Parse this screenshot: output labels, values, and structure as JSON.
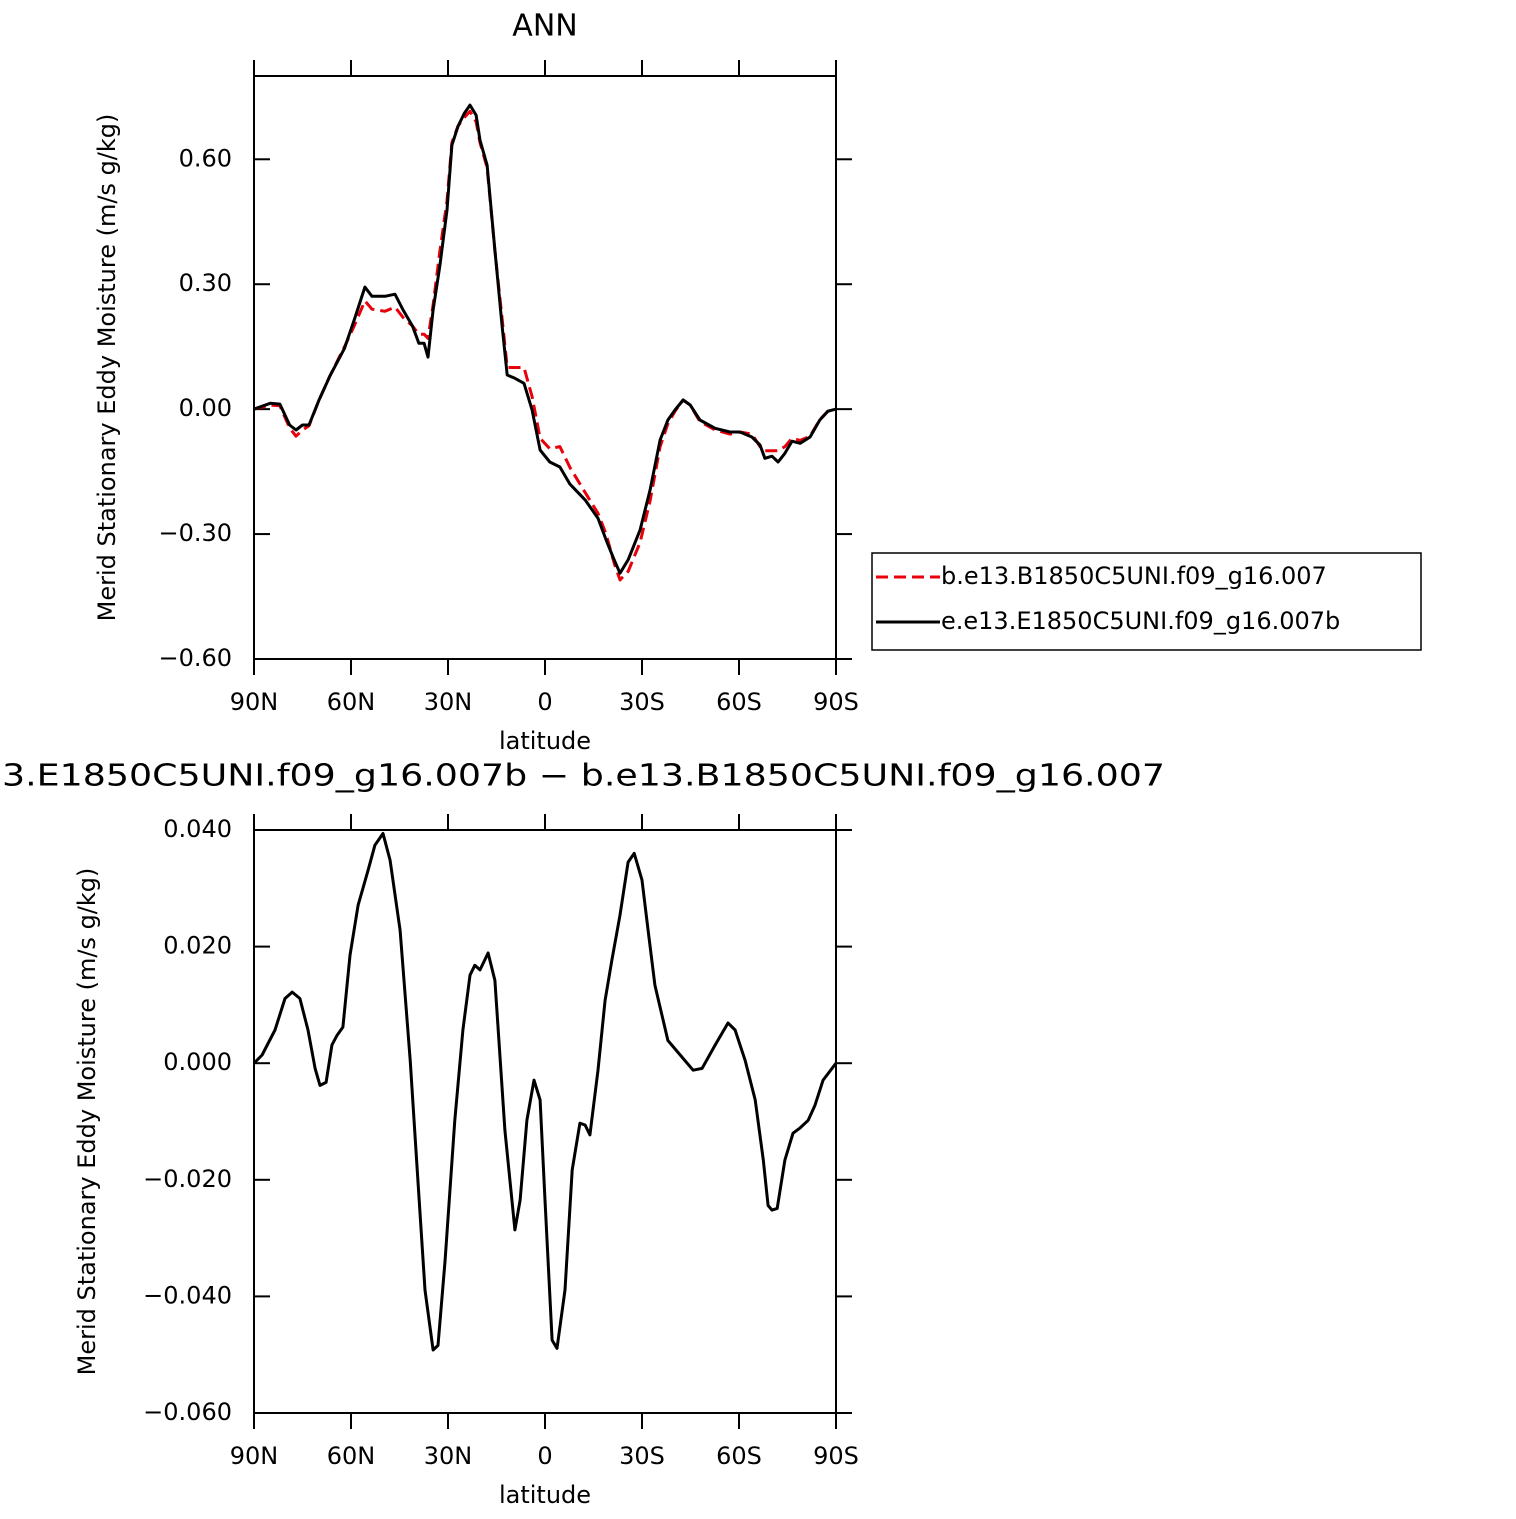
{
  "chart_data": [
    {
      "type": "line",
      "title": "ANN",
      "x_label": "latitude",
      "y_label": "Merid Stationary Eddy Moisture (m/s g/kg)",
      "x": [
        90,
        85,
        82,
        79,
        77,
        75,
        73,
        70,
        66.5,
        62,
        59,
        55.7,
        53.5,
        49.5,
        46.4,
        43.9,
        41,
        39,
        37.4,
        36.2,
        34.6,
        32.5,
        30.3,
        28.8,
        26.9,
        25,
        23.2,
        21.3,
        20.1,
        17.9,
        15.5,
        13.3,
        11.7,
        9.3,
        6.5,
        4,
        1.5,
        -1.5,
        -4.6,
        -7.7,
        -12.4,
        -16.4,
        -18.9,
        -21.4,
        -23.2,
        -25.7,
        -29.4,
        -32.5,
        -35.6,
        -38,
        -40.2,
        -42.7,
        -44.9,
        -47.9,
        -52.6,
        -57.2,
        -60.3,
        -64,
        -66.5,
        -68,
        -70.2,
        -72.1,
        -74.2,
        -76.4,
        -78.9,
        -82,
        -85,
        -87.5,
        -90
      ],
      "xlim": [
        90,
        -90
      ],
      "xticks": [
        {
          "value": 90,
          "label": "90N"
        },
        {
          "value": 60,
          "label": "60N"
        },
        {
          "value": 30,
          "label": "30N"
        },
        0,
        {
          "value": -30,
          "label": "30S"
        },
        {
          "value": -60,
          "label": "60S"
        },
        {
          "value": -90,
          "label": "90S"
        }
      ],
      "ylim": [
        -0.6,
        0.8
      ],
      "yticks": [
        {
          "value": -0.6,
          "label": "−0.60"
        },
        {
          "value": -0.3,
          "label": "−0.30"
        },
        {
          "value": 0,
          "label": "0.00"
        },
        {
          "value": 0.3,
          "label": "0.30"
        },
        {
          "value": 0.6,
          "label": "0.60"
        }
      ],
      "series": [
        {
          "name": "b.e13.B1850C5UNI.f09_g16.007",
          "color": "#e8000b",
          "linestyle": "dashed",
          "values": [
            0,
            0.01,
            0.008,
            -0.045,
            -0.065,
            -0.05,
            -0.04,
            0.02,
            0.08,
            0.15,
            0.2,
            0.26,
            0.24,
            0.235,
            0.245,
            0.22,
            0.2,
            0.18,
            0.18,
            0.17,
            0.25,
            0.38,
            0.5,
            0.64,
            0.68,
            0.7,
            0.715,
            0.69,
            0.64,
            0.58,
            0.38,
            0.22,
            0.1,
            0.1,
            0.1,
            0.03,
            -0.07,
            -0.095,
            -0.09,
            -0.14,
            -0.2,
            -0.25,
            -0.3,
            -0.37,
            -0.41,
            -0.39,
            -0.32,
            -0.22,
            -0.09,
            -0.035,
            -0.005,
            0.022,
            0.01,
            -0.03,
            -0.05,
            -0.06,
            -0.055,
            -0.06,
            -0.09,
            -0.1,
            -0.1,
            -0.1,
            -0.09,
            -0.07,
            -0.075,
            -0.065,
            -0.025,
            -0.005,
            0
          ]
        },
        {
          "name": "e.e13.E1850C5UNI.f09_g16.007b",
          "color": "#000000",
          "linestyle": "solid",
          "values": [
            0,
            0.014,
            0.012,
            -0.038,
            -0.05,
            -0.038,
            -0.038,
            0.02,
            0.08,
            0.146,
            0.214,
            0.293,
            0.271,
            0.271,
            0.276,
            0.238,
            0.2,
            0.158,
            0.158,
            0.125,
            0.238,
            0.345,
            0.478,
            0.634,
            0.679,
            0.71,
            0.73,
            0.706,
            0.646,
            0.586,
            0.382,
            0.202,
            0.082,
            0.074,
            0.062,
            -0.002,
            -0.098,
            -0.127,
            -0.139,
            -0.18,
            -0.218,
            -0.262,
            -0.314,
            -0.362,
            -0.394,
            -0.362,
            -0.29,
            -0.194,
            -0.074,
            -0.026,
            -0.002,
            0.022,
            0.01,
            -0.026,
            -0.046,
            -0.055,
            -0.055,
            -0.067,
            -0.086,
            -0.118,
            -0.113,
            -0.127,
            -0.106,
            -0.077,
            -0.082,
            -0.067,
            -0.026,
            -0.005,
            0
          ]
        }
      ]
    },
    {
      "type": "line",
      "title": "3.E1850C5UNI.f09_g16.007b − b.e13.B1850C5UNI.f09_g16.007",
      "x_label": "latitude",
      "y_label": "Merid Stationary Eddy Moisture (m/s g/kg)",
      "x": [
        90,
        87.5,
        83.5,
        80.4,
        78.2,
        75.8,
        73.3,
        71.1,
        69.6,
        67.7,
        65.9,
        64.3,
        62.5,
        60.3,
        57.8,
        54.7,
        52.6,
        50.1,
        47.9,
        44.8,
        41.7,
        39.3,
        37.1,
        34.6,
        33.1,
        30.9,
        27.9,
        25.4,
        23.2,
        21.7,
        20.1,
        17.6,
        15.5,
        12.4,
        9.3,
        7.7,
        5.6,
        3.4,
        1.5,
        0,
        -2.2,
        -3.7,
        -6.2,
        -8.4,
        -10.8,
        -12.4,
        -13.9,
        -16.4,
        -18.6,
        -20.7,
        -23.2,
        -25.7,
        -27.6,
        -30,
        -31.9,
        -34,
        -38,
        -41.8,
        -45.8,
        -48.6,
        -52.6,
        -56.6,
        -58.8,
        -61.9,
        -65,
        -67.5,
        -69,
        -70.2,
        -71.8,
        -74.2,
        -76.7,
        -78.9,
        -81.4,
        -83.5,
        -86,
        -90
      ],
      "xlim": [
        90,
        -90
      ],
      "xticks": [
        {
          "value": 90,
          "label": "90N"
        },
        {
          "value": 60,
          "label": "60N"
        },
        {
          "value": 30,
          "label": "30N"
        },
        0,
        {
          "value": -30,
          "label": "30S"
        },
        {
          "value": -60,
          "label": "60S"
        },
        {
          "value": -90,
          "label": "90S"
        }
      ],
      "ylim": [
        -0.06,
        0.04
      ],
      "yticks": [
        {
          "value": -0.06,
          "label": "−0.060"
        },
        {
          "value": -0.04,
          "label": "−0.040"
        },
        {
          "value": -0.02,
          "label": "−0.020"
        },
        {
          "value": 0,
          "label": "0.000"
        },
        {
          "value": 0.02,
          "label": "0.020"
        },
        {
          "value": 0.04,
          "label": "0.040"
        }
      ],
      "series": [
        {
          "color": "#000000",
          "linestyle": "solid",
          "values": [
            0,
            0.0014,
            0.0057,
            0.0111,
            0.0122,
            0.0111,
            0.0057,
            -0.0009,
            -0.0038,
            -0.0033,
            0.0031,
            0.0048,
            0.0062,
            0.0185,
            0.0271,
            0.0331,
            0.0374,
            0.0394,
            0.0348,
            0.0228,
            0.0005,
            -0.0201,
            -0.0389,
            -0.0492,
            -0.0484,
            -0.0338,
            -0.0098,
            0.0057,
            0.0151,
            0.0168,
            0.016,
            0.0189,
            0.0142,
            -0.0115,
            -0.0286,
            -0.0235,
            -0.0098,
            -0.0029,
            -0.0063,
            -0.0235,
            -0.0475,
            -0.0489,
            -0.0389,
            -0.0183,
            -0.0103,
            -0.0106,
            -0.0123,
            -0.0012,
            0.0108,
            0.0177,
            0.0254,
            0.0345,
            0.036,
            0.0314,
            0.0228,
            0.0134,
            0.0039,
            0.0014,
            -0.0012,
            -0.0009,
            0.0031,
            0.0069,
            0.0057,
            0.0005,
            -0.0063,
            -0.0166,
            -0.0244,
            -0.0252,
            -0.0249,
            -0.0166,
            -0.012,
            -0.0111,
            -0.0098,
            -0.0072,
            -0.0029,
            0
          ]
        }
      ]
    }
  ]
}
